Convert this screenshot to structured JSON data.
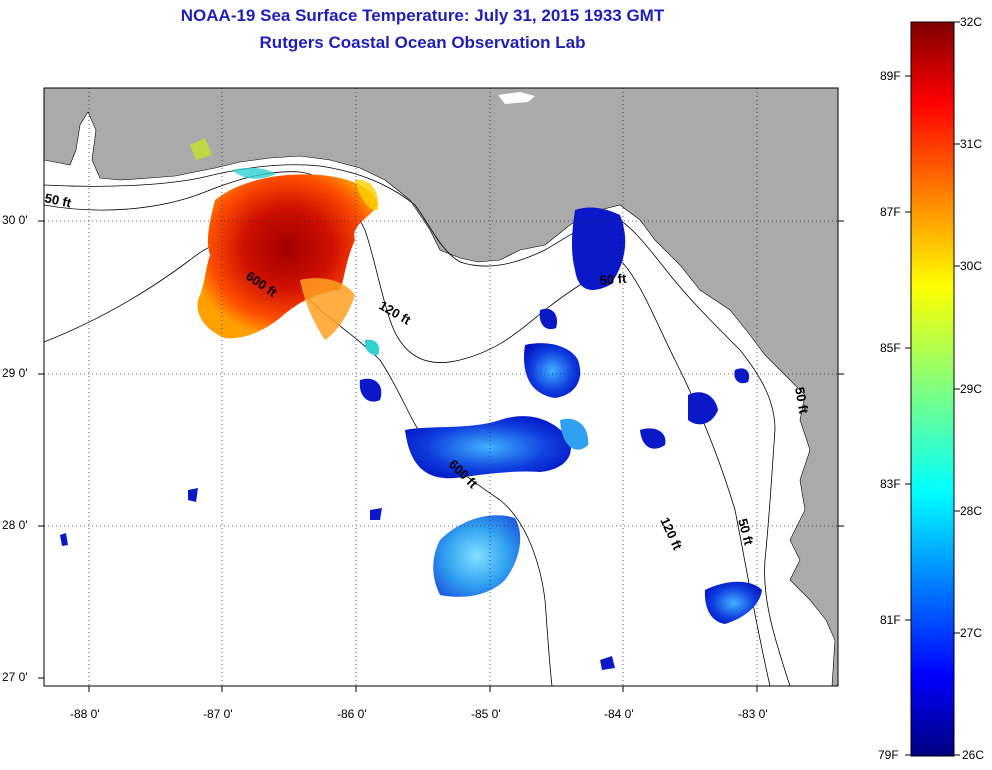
{
  "title": {
    "line1": "NOAA-19 Sea Surface Temperature:  July 31, 2015 1933 GMT",
    "line2": "Rutgers Coastal Ocean Observation Lab"
  },
  "axes": {
    "lat_labels": [
      "30 0'",
      "29 0'",
      "28 0'",
      "27 0'"
    ],
    "lon_labels": [
      "-88 0'",
      "-87 0'",
      "-86 0'",
      "-85 0'",
      "-84 0'",
      "-83 0'"
    ]
  },
  "contours": {
    "labels": [
      "50 ft",
      "600 ft",
      "120 ft",
      "50 ft",
      "600 ft",
      "120 ft",
      "50 ft",
      "50 ft"
    ]
  },
  "colorbar": {
    "celsius": [
      "32C",
      "31C",
      "30C",
      "29C",
      "28C",
      "27C",
      "26C"
    ],
    "fahrenheit": [
      "89F",
      "87F",
      "85F",
      "83F",
      "81F",
      "79F"
    ]
  },
  "colors": {
    "land": "#aaaaaa",
    "title": "#1f1fb4",
    "warm": "#b40000",
    "cool": "#0010c0"
  }
}
